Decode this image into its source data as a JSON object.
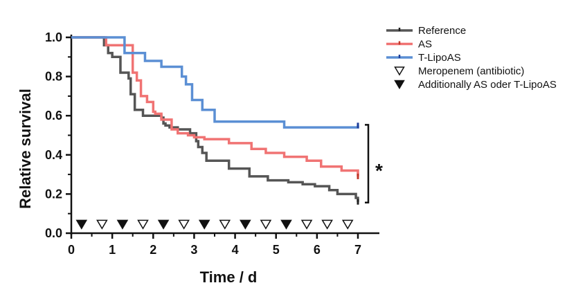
{
  "chart_data": {
    "type": "line",
    "subtype": "kaplan-meier step",
    "xlabel": "Time / d",
    "ylabel": "Relative survival",
    "xlim": [
      0,
      7
    ],
    "ylim": [
      0,
      1.0
    ],
    "x_ticks": [
      "0",
      "1",
      "2",
      "3",
      "4",
      "5",
      "6",
      "7"
    ],
    "y_ticks": [
      "0.0",
      "0.2",
      "0.4",
      "0.6",
      "0.8",
      "1.0"
    ],
    "grid": false,
    "legend_position": "top-right",
    "significance_label": "*",
    "series": [
      {
        "name": "Reference",
        "color": "#555555",
        "x": [
          0,
          0.8,
          0.9,
          1.0,
          1.2,
          1.4,
          1.45,
          1.55,
          1.75,
          2.2,
          2.25,
          2.3,
          2.4,
          2.6,
          2.9,
          3.05,
          3.1,
          3.2,
          3.3,
          3.85,
          4.35,
          4.8,
          5.3,
          5.65,
          5.95,
          6.3,
          6.5,
          6.95,
          7.0
        ],
        "y": [
          1.0,
          0.96,
          0.92,
          0.9,
          0.82,
          0.79,
          0.71,
          0.63,
          0.6,
          0.59,
          0.56,
          0.55,
          0.54,
          0.53,
          0.51,
          0.47,
          0.44,
          0.41,
          0.37,
          0.33,
          0.29,
          0.27,
          0.26,
          0.25,
          0.24,
          0.22,
          0.2,
          0.18,
          0.16
        ]
      },
      {
        "name": "AS",
        "color": "#f07373",
        "x": [
          0,
          0.85,
          1.5,
          1.6,
          1.7,
          1.85,
          2.0,
          2.05,
          2.2,
          2.45,
          2.6,
          2.85,
          3.0,
          3.25,
          3.85,
          4.4,
          4.75,
          5.2,
          5.75,
          6.1,
          6.6,
          7.0
        ],
        "y": [
          1.0,
          0.96,
          0.82,
          0.78,
          0.7,
          0.67,
          0.62,
          0.61,
          0.58,
          0.53,
          0.51,
          0.5,
          0.49,
          0.48,
          0.46,
          0.43,
          0.41,
          0.39,
          0.37,
          0.34,
          0.32,
          0.29
        ]
      },
      {
        "name": "T-LipoAS",
        "color": "#5b8fd4",
        "x": [
          0,
          1.3,
          1.8,
          2.2,
          2.7,
          2.8,
          2.95,
          3.2,
          3.5,
          5.2,
          7.0
        ],
        "y": [
          1.0,
          0.92,
          0.88,
          0.85,
          0.8,
          0.76,
          0.68,
          0.63,
          0.57,
          0.54,
          0.55
        ]
      }
    ],
    "markers": [
      {
        "name": "Meropenem (antibiotic)",
        "style": "open-down-triangle",
        "x": [
          0.75,
          1.75,
          2.75,
          3.75,
          4.75,
          5.75,
          6.25,
          6.75
        ]
      },
      {
        "name": "Additionally AS oder T-LipoAS",
        "style": "filled-down-triangle",
        "x": [
          0.25,
          1.25,
          2.25,
          3.25,
          4.25,
          5.25
        ]
      }
    ],
    "marker_y": 0.045,
    "legend": [
      {
        "label": "Reference",
        "symbol": "line",
        "color": "#555555"
      },
      {
        "label": "AS",
        "symbol": "line",
        "color": "#f07373"
      },
      {
        "label": "T-LipoAS",
        "symbol": "line",
        "color": "#5b8fd4"
      },
      {
        "label": "Meropenem (antibiotic)",
        "symbol": "open-down-triangle",
        "color": "#111111"
      },
      {
        "label": "Additionally AS oder T-LipoAS",
        "symbol": "filled-down-triangle",
        "color": "#111111"
      }
    ]
  }
}
